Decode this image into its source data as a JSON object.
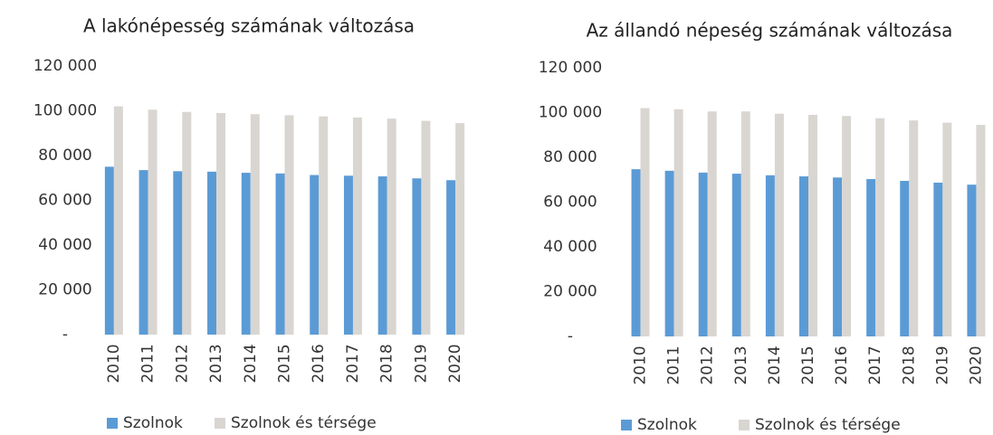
{
  "chart_data": [
    {
      "type": "bar",
      "title": "A lakónépesség számának változása",
      "categories": [
        "2010",
        "2011",
        "2012",
        "2013",
        "2014",
        "2015",
        "2016",
        "2017",
        "2018",
        "2019",
        "2020"
      ],
      "series": [
        {
          "name": "Szolnok",
          "color": "#5b9bd5",
          "values": [
            75000,
            73500,
            73000,
            72800,
            72300,
            72000,
            71300,
            71000,
            70700,
            69800,
            69000
          ]
        },
        {
          "name": "Szolnok és térsége",
          "color": "#d9d6d2",
          "values": [
            102000,
            100500,
            99500,
            99000,
            98500,
            98000,
            97500,
            97000,
            96500,
            95500,
            94500
          ]
        }
      ],
      "ylim": [
        0,
        120000
      ],
      "yticks": [
        {
          "value": 0,
          "label": "-"
        },
        {
          "value": 20000,
          "label": "20 000"
        },
        {
          "value": 40000,
          "label": "40 000"
        },
        {
          "value": 60000,
          "label": "60 000"
        },
        {
          "value": 80000,
          "label": "80 000"
        },
        {
          "value": 100000,
          "label": "100 000"
        },
        {
          "value": 120000,
          "label": "120 000"
        }
      ],
      "grid": false,
      "legend": "bottom"
    },
    {
      "type": "bar",
      "title": "Az állandó népeség számának változása",
      "categories": [
        "2010",
        "2011",
        "2012",
        "2013",
        "2014",
        "2015",
        "2016",
        "2017",
        "2018",
        "2019",
        "2020"
      ],
      "series": [
        {
          "name": "Szolnok",
          "color": "#5b9bd5",
          "values": [
            74700,
            74000,
            73200,
            72700,
            72000,
            71500,
            71000,
            70300,
            69500,
            68700,
            67800
          ]
        },
        {
          "name": "Szolnok és térsége",
          "color": "#d9d6d2",
          "values": [
            102000,
            101500,
            100500,
            100500,
            99500,
            99000,
            98500,
            97500,
            96500,
            95500,
            94500
          ]
        }
      ],
      "ylim": [
        0,
        120000
      ],
      "yticks": [
        {
          "value": 0,
          "label": "-"
        },
        {
          "value": 20000,
          "label": "20 000"
        },
        {
          "value": 40000,
          "label": "40 000"
        },
        {
          "value": 60000,
          "label": "60 000"
        },
        {
          "value": 80000,
          "label": "80 000"
        },
        {
          "value": 100000,
          "label": "100 000"
        },
        {
          "value": 120000,
          "label": "120 000"
        }
      ],
      "grid": false,
      "legend": "bottom"
    }
  ]
}
